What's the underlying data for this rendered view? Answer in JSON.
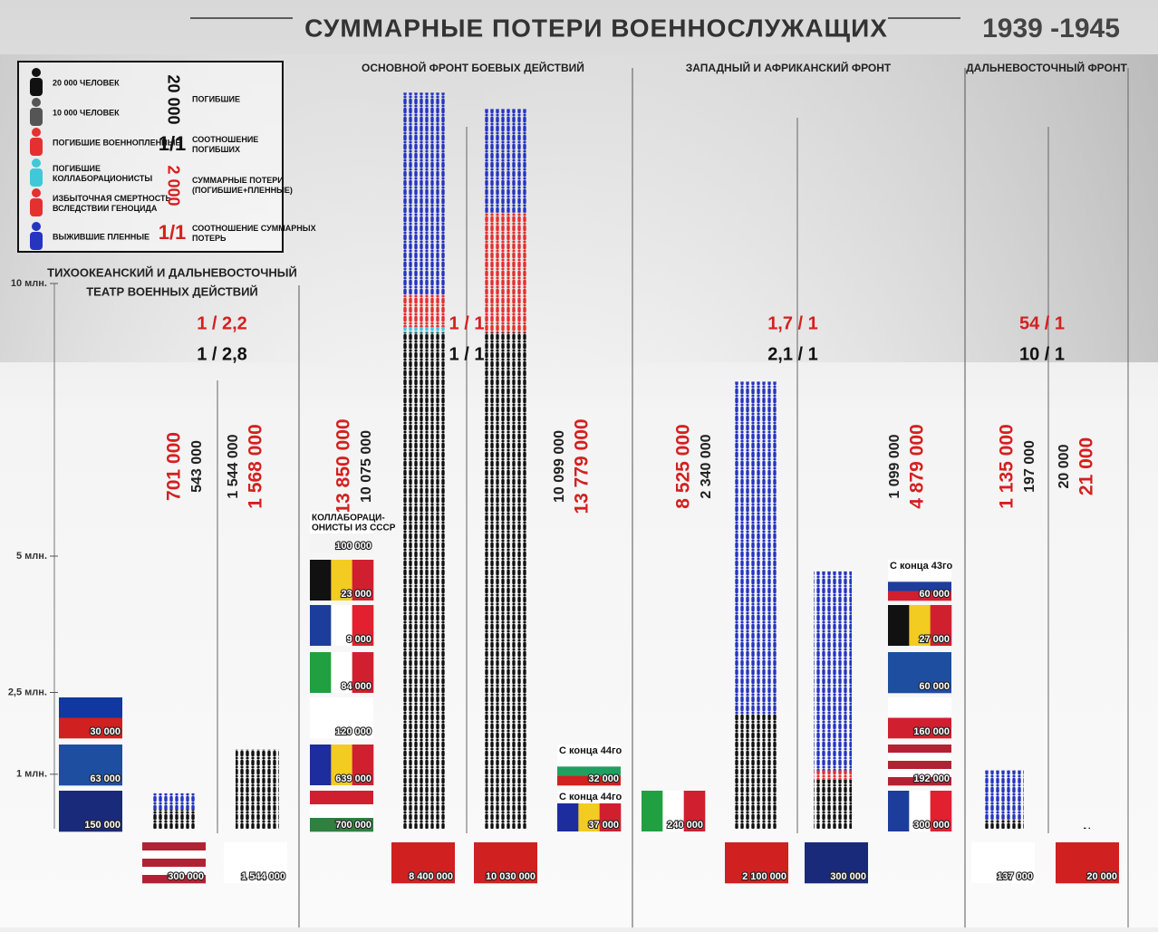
{
  "title": "СУММАРНЫЕ ПОТЕРИ ВОЕННОСЛУЖАЩИХ",
  "years": "1939 -1945",
  "legend": {
    "items": [
      {
        "label": "20 000 ЧЕЛОВЕК",
        "color": "#111111"
      },
      {
        "label": "10 000 ЧЕЛОВЕК",
        "color": "#555555"
      },
      {
        "label": "ПОГИБШИЕ ВОЕННОПЛЕННЫЕ",
        "color": "#e53030"
      },
      {
        "label": "ПОГИБШИЕ КОЛЛАБОРАЦИОНИСТЫ",
        "color": "#40c8d8"
      },
      {
        "label": "ИЗБЫТОЧНАЯ СМЕРТНОСТЬ ВСЛЕДСТВИИ ГЕНОЦИДА",
        "color": "#e53030"
      },
      {
        "label": "ВЫЖИВШИЕ ПЛЕННЫЕ",
        "color": "#2535c0"
      }
    ],
    "keys": [
      {
        "sample": "20 000",
        "text": "ПОГИБШИЕ",
        "color": "#111111"
      },
      {
        "sample": "1/1",
        "text": "СООТНОШЕНИЕ ПОГИБШИХ",
        "color": "#111111"
      },
      {
        "sample": "2 000",
        "text": "СУММАРНЫЕ ПОТЕРИ (ПОГИБШИЕ+ПЛЕННЫЕ)",
        "color": "#d42020"
      },
      {
        "sample": "1/1",
        "text": "СООТНОШЕНИЕ СУММАРНЫХ ПОТЕРЬ",
        "color": "#d42020"
      }
    ]
  },
  "axis": {
    "min": 0,
    "max": 10000000,
    "ticks": [
      {
        "value": 10000000,
        "label": "10 млн."
      },
      {
        "value": 5000000,
        "label": "5 млн."
      },
      {
        "value": 2500000,
        "label": "2,5 млн."
      },
      {
        "value": 1000000,
        "label": "1 млн."
      }
    ]
  },
  "fronts": [
    {
      "name": [
        "ТИХООКЕАНСКИЙ И ДАЛЬНЕВОСТОЧНЫЙ",
        "ТЕАТР ВОЕННЫХ ДЕЙСТВИЙ"
      ],
      "ratio_total": "1 / 2,2",
      "ratio_dead": "1 / 2,8"
    },
    {
      "name": [
        "ОСНОВНОЙ ФРОНТ БОЕВЫХ ДЕЙСТВИЙ"
      ],
      "ratio_total": "1 / 1",
      "ratio_dead": "1 / 1"
    },
    {
      "name": [
        "ЗАПАДНЫЙ И АФРИКАНСКИЙ ФРОНТ"
      ],
      "ratio_total": "1,7 / 1",
      "ratio_dead": "2,1 / 1"
    },
    {
      "name": [
        "ДАЛЬНЕВОСТОЧНЫЙ ФРОНТ"
      ],
      "ratio_total": "54 / 1",
      "ratio_dead": "10 / 1"
    }
  ],
  "piles": [
    {
      "segments": [
        {
          "value": 350000,
          "color": "#111111"
        },
        {
          "value": 300000,
          "color": "#2535c0"
        }
      ]
    },
    {
      "segments": [
        {
          "value": 1450000,
          "color": "#111111"
        }
      ]
    },
    {
      "segments": [
        {
          "value": 9100000,
          "color": "#111111"
        },
        {
          "value": 100000,
          "color": "#40c8d8"
        },
        {
          "value": 600000,
          "color": "#e53030"
        },
        {
          "value": 3700000,
          "color": "#2535c0"
        }
      ]
    },
    {
      "segments": [
        {
          "value": 9100000,
          "color": "#111111"
        },
        {
          "value": 2200000,
          "color": "#e53030"
        },
        {
          "value": 1900000,
          "color": "#2535c0"
        }
      ]
    },
    {
      "segments": [
        {
          "value": 2100000,
          "color": "#111111"
        },
        {
          "value": 6100000,
          "color": "#2535c0"
        }
      ]
    },
    {
      "segments": [
        {
          "value": 900000,
          "color": "#111111"
        },
        {
          "value": 170000,
          "color": "#e53030"
        },
        {
          "value": 3650000,
          "color": "#2535c0"
        }
      ]
    },
    {
      "segments": [
        {
          "value": 170000,
          "color": "#111111"
        },
        {
          "value": 900000,
          "color": "#2535c0"
        }
      ]
    },
    {
      "segments": [
        {
          "value": 20000,
          "color": "#111111"
        }
      ]
    }
  ],
  "totals": [
    {
      "text": "701 000",
      "color": "#d42020"
    },
    {
      "text": "543 000",
      "color": "#222222"
    },
    {
      "text": "1 544 000",
      "color": "#222222"
    },
    {
      "text": "1 568 000",
      "color": "#d42020"
    },
    {
      "text": "13 850 000",
      "color": "#d42020"
    },
    {
      "text": "10 075 000",
      "color": "#222222"
    },
    {
      "text": "10 099 000",
      "color": "#222222"
    },
    {
      "text": "13 779 000",
      "color": "#d42020"
    },
    {
      "text": "8 525 000",
      "color": "#d42020"
    },
    {
      "text": "2 340 000",
      "color": "#222222"
    },
    {
      "text": "1 099 000",
      "color": "#222222"
    },
    {
      "text": "4 879 000",
      "color": "#d42020"
    },
    {
      "text": "1 135 000",
      "color": "#d42020"
    },
    {
      "text": "197 000",
      "color": "#222222"
    },
    {
      "text": "20 000",
      "color": "#222222"
    },
    {
      "text": "21 000",
      "color": "#d42020"
    }
  ],
  "flags": [
    {
      "label": "30 000",
      "stripes": [
        "#1038a0",
        "#d02020"
      ],
      "dir": "h"
    },
    {
      "label": "63 000",
      "stripes": [
        "#1e4ea0"
      ],
      "dir": "h"
    },
    {
      "label": "150 000",
      "stripes": [
        "#1a2a7a"
      ],
      "dir": "h"
    },
    {
      "label": "300 000",
      "stripes": [
        "#b22234",
        "#ffffff",
        "#b22234",
        "#ffffff",
        "#b22234"
      ],
      "dir": "h"
    },
    {
      "label": "1 544 000",
      "stripes": [
        "#ffffff"
      ],
      "dir": "h"
    },
    {
      "note": [
        "КОЛЛАБОРАЦИ-",
        "ОНИСТЫ ИЗ СССР"
      ],
      "label": "100 000",
      "stripes": [
        "#f4f4f4"
      ],
      "dir": "h"
    },
    {
      "label": "23 000",
      "stripes": [
        "#111111",
        "#f2cc20",
        "#d02030"
      ],
      "dir": "v"
    },
    {
      "label": "9 000",
      "stripes": [
        "#1d3d9d",
        "#ffffff",
        "#e22030"
      ],
      "dir": "v"
    },
    {
      "label": "84 000",
      "stripes": [
        "#20a040",
        "#ffffff",
        "#d02030"
      ],
      "dir": "v"
    },
    {
      "label": "120 000",
      "stripes": [
        "#ffffff"
      ],
      "dir": "h"
    },
    {
      "label": "639 000",
      "stripes": [
        "#1d2d9d",
        "#f2cc20",
        "#d02030"
      ],
      "dir": "v"
    },
    {
      "label": "700 000",
      "stripes": [
        "#d02030",
        "#ffffff",
        "#308040"
      ],
      "dir": "h"
    },
    {
      "label": "8 400 000",
      "stripes": [
        "#d02020"
      ],
      "dir": "h"
    },
    {
      "label": "10 030 000",
      "stripes": [
        "#d02020"
      ],
      "dir": "h"
    },
    {
      "note": [
        "С конца 44го"
      ],
      "label": "32 000",
      "stripes": [
        "#ffffff",
        "#20a060",
        "#d02020"
      ],
      "dir": "h"
    },
    {
      "note": [
        "С конца 44го"
      ],
      "label": "37 000",
      "stripes": [
        "#1d2d9d",
        "#f2cc20",
        "#d02030"
      ],
      "dir": "v"
    },
    {
      "label": "240 000",
      "stripes": [
        "#20a040",
        "#ffffff",
        "#d02030"
      ],
      "dir": "v"
    },
    {
      "label": "2 100 000",
      "stripes": [
        "#d02020"
      ],
      "dir": "h"
    },
    {
      "label": "300 000",
      "stripes": [
        "#1a2a7a"
      ],
      "dir": "h"
    },
    {
      "note": [
        "С конца 43го"
      ],
      "label": "60 000",
      "stripes": [
        "#ffffff",
        "#1d3d9d",
        "#d02030"
      ],
      "dir": "h"
    },
    {
      "label": "27 000",
      "stripes": [
        "#111111",
        "#f2cc20",
        "#d02030"
      ],
      "dir": "v"
    },
    {
      "label": "60 000",
      "stripes": [
        "#1e4ea0"
      ],
      "dir": "h"
    },
    {
      "label": "160 000",
      "stripes": [
        "#ffffff",
        "#d02030"
      ],
      "dir": "h"
    },
    {
      "label": "192 000",
      "stripes": [
        "#b22234",
        "#ffffff",
        "#b22234",
        "#ffffff",
        "#b22234"
      ],
      "dir": "h"
    },
    {
      "label": "300 000",
      "stripes": [
        "#1d3d9d",
        "#ffffff",
        "#e22030"
      ],
      "dir": "v"
    },
    {
      "label": "137 000",
      "stripes": [
        "#ffffff"
      ],
      "dir": "h"
    },
    {
      "label": "20 000",
      "stripes": [
        "#d02020"
      ],
      "dir": "h"
    }
  ]
}
